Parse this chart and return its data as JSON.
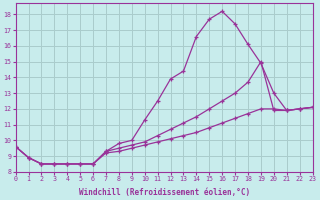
{
  "xlabel": "Windchill (Refroidissement éolien,°C)",
  "bg_color": "#c8ecec",
  "grid_color": "#aacccc",
  "line_color": "#993399",
  "xlim": [
    0,
    23
  ],
  "ylim": [
    8.0,
    18.7
  ],
  "xticks": [
    0,
    1,
    2,
    3,
    4,
    5,
    6,
    7,
    8,
    9,
    10,
    11,
    12,
    13,
    14,
    15,
    16,
    17,
    18,
    19,
    20,
    21,
    22,
    23
  ],
  "yticks": [
    8,
    9,
    10,
    11,
    12,
    13,
    14,
    15,
    16,
    17,
    18
  ],
  "line1_x": [
    0,
    1,
    2,
    3,
    4,
    5,
    6,
    7,
    8,
    9,
    10,
    11,
    12,
    13,
    14,
    15,
    16,
    17,
    18,
    19,
    20,
    21,
    22,
    23
  ],
  "line1_y": [
    9.6,
    8.9,
    8.5,
    8.5,
    8.5,
    8.5,
    8.5,
    9.3,
    9.8,
    10.0,
    11.3,
    12.5,
    13.9,
    14.4,
    16.6,
    17.7,
    18.2,
    17.4,
    16.1,
    14.9,
    13.0,
    11.9,
    12.0,
    12.1
  ],
  "line2_x": [
    0,
    1,
    2,
    3,
    4,
    5,
    6,
    7,
    8,
    9,
    10,
    11,
    12,
    13,
    14,
    15,
    16,
    17,
    18,
    19,
    20,
    21,
    22,
    23
  ],
  "line2_y": [
    9.6,
    8.9,
    8.5,
    8.5,
    8.5,
    8.5,
    8.5,
    9.3,
    9.5,
    9.7,
    9.9,
    10.3,
    10.7,
    11.1,
    11.5,
    12.0,
    12.5,
    13.0,
    13.7,
    15.0,
    11.9,
    11.9,
    12.0,
    12.1
  ],
  "line3_x": [
    0,
    1,
    2,
    3,
    4,
    5,
    6,
    7,
    8,
    9,
    10,
    11,
    12,
    13,
    14,
    15,
    16,
    17,
    18,
    19,
    20,
    21,
    22,
    23
  ],
  "line3_y": [
    9.6,
    8.9,
    8.5,
    8.5,
    8.5,
    8.5,
    8.5,
    9.2,
    9.3,
    9.5,
    9.7,
    9.9,
    10.1,
    10.3,
    10.5,
    10.8,
    11.1,
    11.4,
    11.7,
    12.0,
    12.0,
    11.9,
    12.0,
    12.1
  ]
}
